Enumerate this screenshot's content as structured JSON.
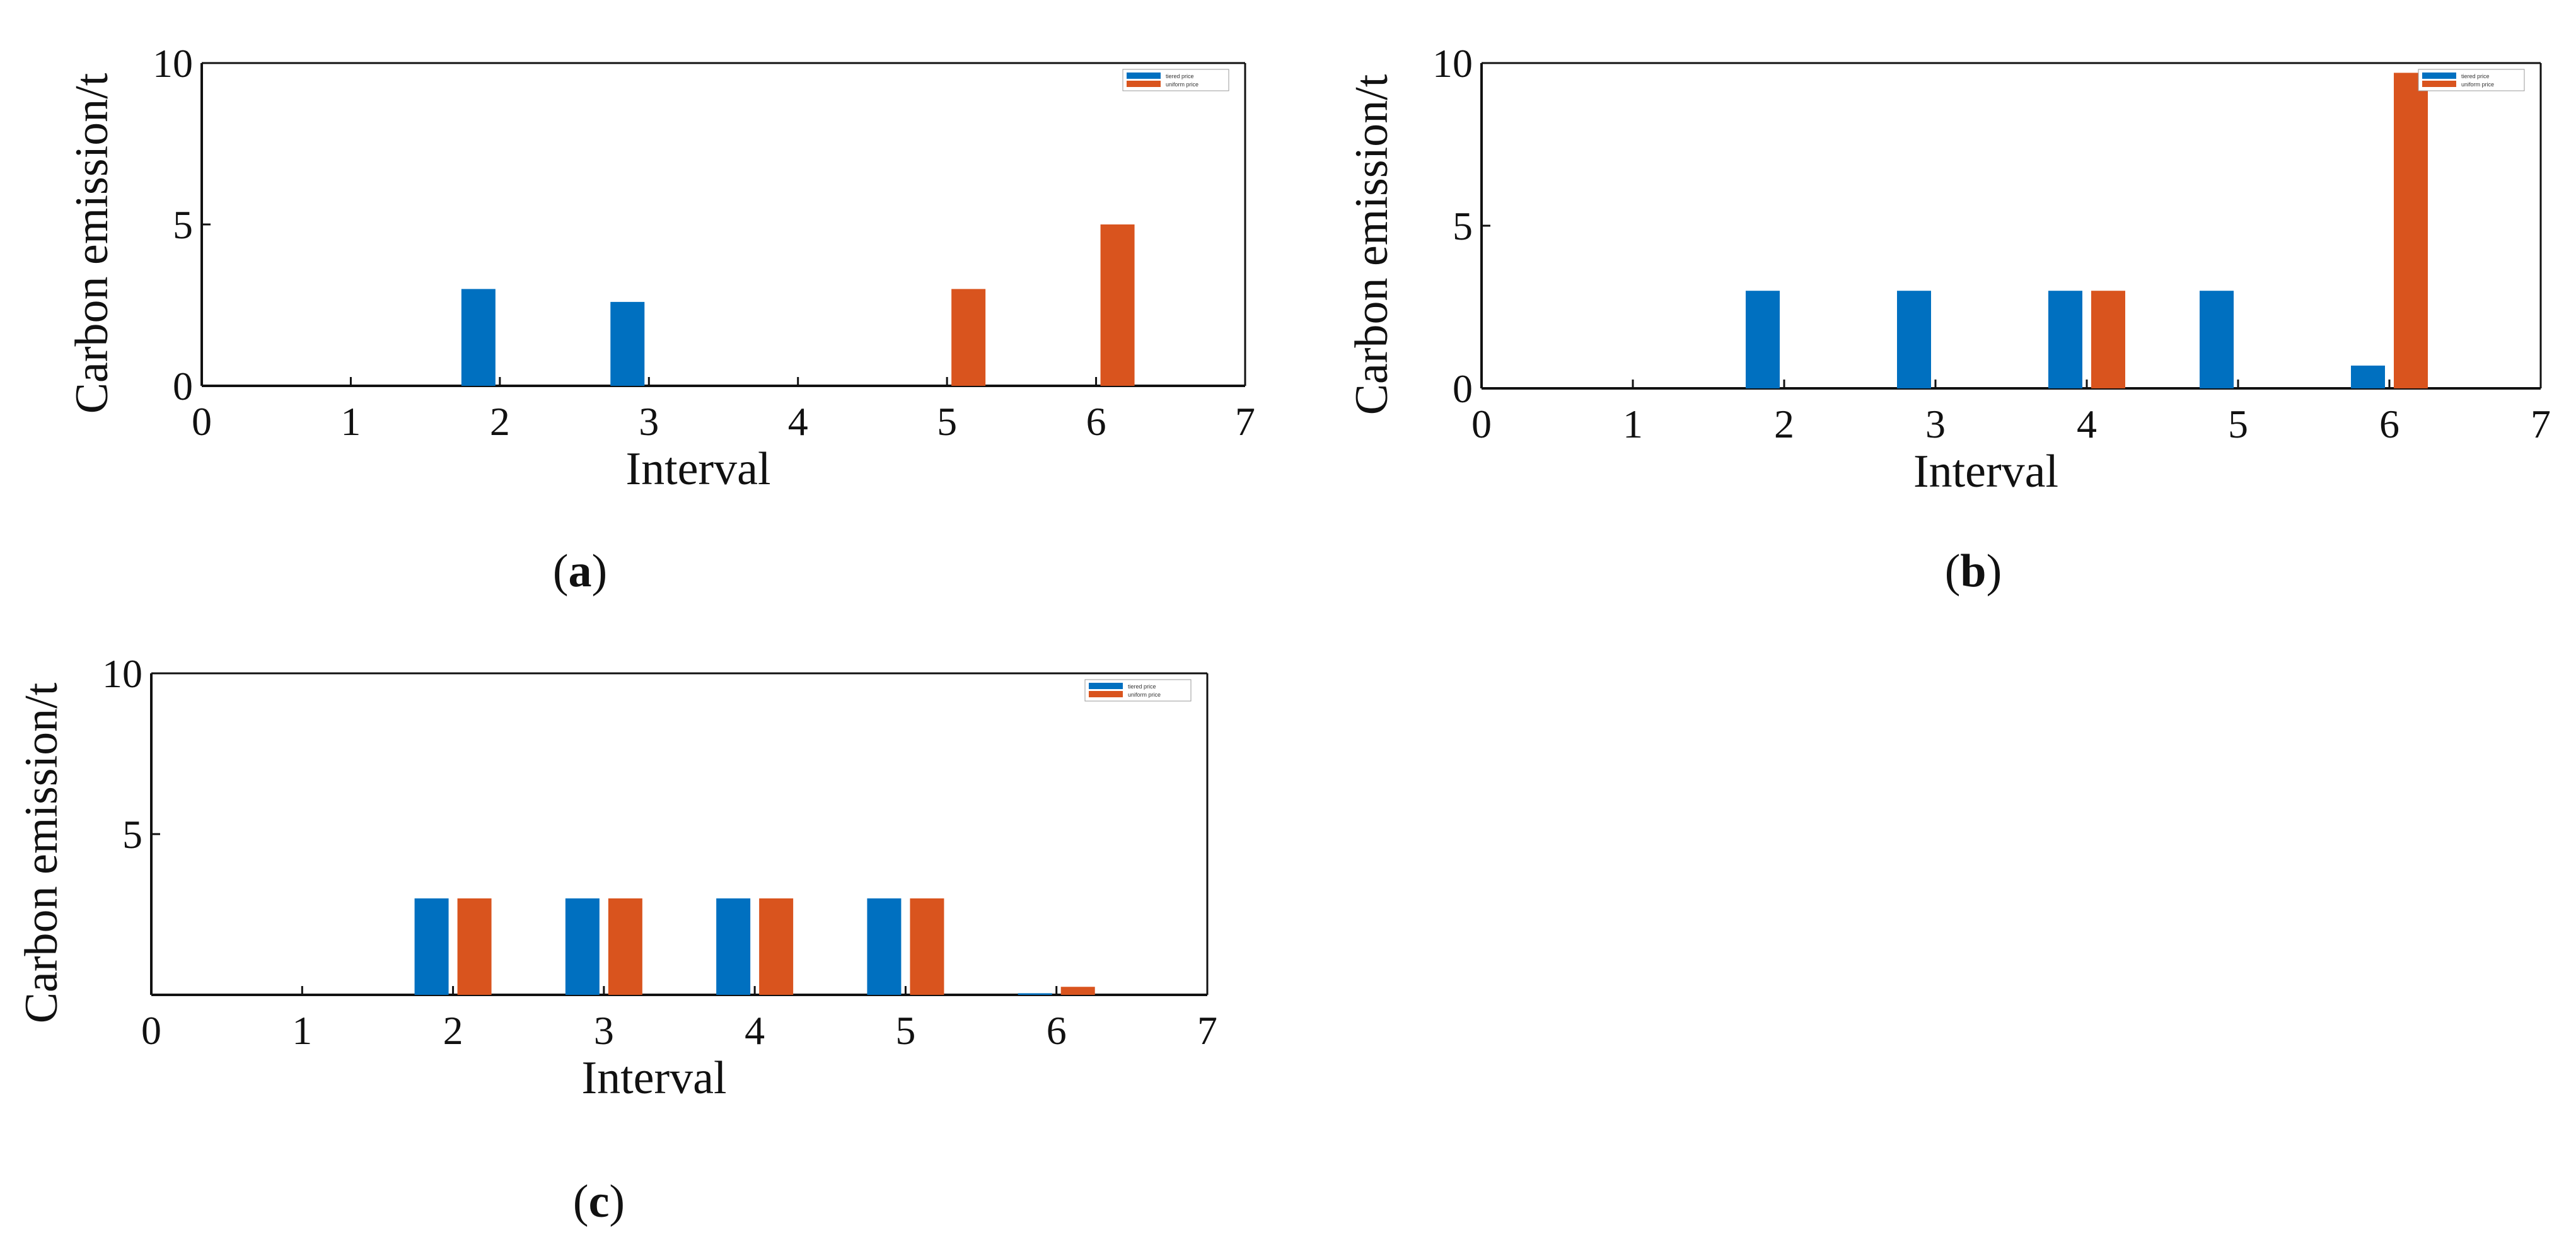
{
  "colors": {
    "tiered": "#0070C0",
    "uniform": "#D9541E",
    "axis": "#111111"
  },
  "chart_data": [
    {
      "id": "a",
      "panel_label": "a",
      "type": "bar",
      "xlabel": "Interval",
      "ylabel": "Carbon emission/t",
      "xlim": [
        0,
        7
      ],
      "ylim": [
        0,
        10
      ],
      "xticks": [
        "0",
        "1",
        "2",
        "3",
        "4",
        "5",
        "6",
        "7"
      ],
      "yticks": [
        "0",
        "5",
        "10"
      ],
      "legend_position": "top-right",
      "categories": [
        1,
        2,
        3,
        4,
        5,
        6
      ],
      "series": [
        {
          "name": "tiered price",
          "values": [
            0,
            3.0,
            2.6,
            0,
            0,
            0
          ]
        },
        {
          "name": "uniform price",
          "values": [
            0,
            0,
            0,
            0,
            3.0,
            5.0
          ]
        }
      ]
    },
    {
      "id": "b",
      "panel_label": "b",
      "type": "bar",
      "xlabel": "Interval",
      "ylabel": "Carbon emission/t",
      "xlim": [
        0,
        7
      ],
      "ylim": [
        0,
        10
      ],
      "xticks": [
        "0",
        "1",
        "2",
        "3",
        "4",
        "5",
        "6",
        "7"
      ],
      "yticks": [
        "0",
        "5",
        "10"
      ],
      "legend_position": "top-right",
      "categories": [
        1,
        2,
        3,
        4,
        5,
        6
      ],
      "series": [
        {
          "name": "tiered price",
          "values": [
            0,
            3.0,
            3.0,
            3.0,
            3.0,
            0.7
          ]
        },
        {
          "name": "uniform price",
          "values": [
            0,
            0,
            0,
            3.0,
            0,
            9.7
          ]
        }
      ]
    },
    {
      "id": "c",
      "panel_label": "c",
      "type": "bar",
      "xlabel": "Interval",
      "ylabel": "Carbon emission/t",
      "xlim": [
        0,
        7
      ],
      "ylim": [
        0,
        10
      ],
      "xticks": [
        "0",
        "1",
        "2",
        "3",
        "4",
        "5",
        "6",
        "7"
      ],
      "yticks": [
        "5",
        "10"
      ],
      "legend_position": "top-right",
      "categories": [
        1,
        2,
        3,
        4,
        5,
        6
      ],
      "series": [
        {
          "name": "tiered price",
          "values": [
            0,
            3.0,
            3.0,
            3.0,
            3.0,
            0.05
          ]
        },
        {
          "name": "uniform price",
          "values": [
            0,
            3.0,
            3.0,
            3.0,
            3.0,
            0.25
          ]
        }
      ]
    }
  ]
}
